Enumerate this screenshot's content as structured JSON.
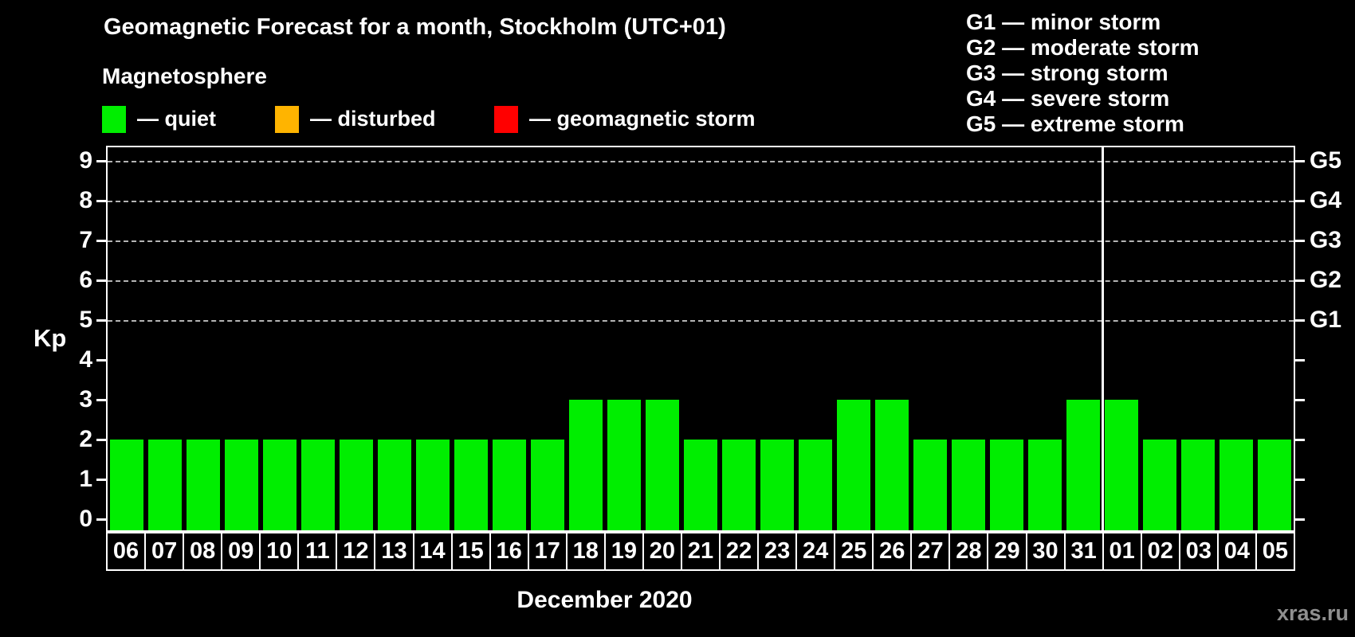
{
  "title": "Geomagnetic Forecast for a month, Stockholm (UTC+01)",
  "magnetosphere": {
    "heading": "Magnetosphere",
    "legend": [
      {
        "name": "quiet",
        "label": "— quiet",
        "color": "#00ee00"
      },
      {
        "name": "disturbed",
        "label": "— disturbed",
        "color": "#ffb400"
      },
      {
        "name": "geomagnetic-storm",
        "label": "— geomagnetic storm",
        "color": "#ff0000"
      }
    ]
  },
  "g_scale_legend": [
    "G1 — minor storm",
    "G2 — moderate storm",
    "G3 — strong storm",
    "G4 — severe storm",
    "G5 — extreme storm"
  ],
  "y_axis": {
    "label": "Kp",
    "ticks": [
      0,
      1,
      2,
      3,
      4,
      5,
      6,
      7,
      8,
      9
    ]
  },
  "right_axis": {
    "labels": [
      {
        "level": 5,
        "text": "G1"
      },
      {
        "level": 6,
        "text": "G2"
      },
      {
        "level": 7,
        "text": "G3"
      },
      {
        "level": 8,
        "text": "G4"
      },
      {
        "level": 9,
        "text": "G5"
      }
    ]
  },
  "x_axis_label": "December 2020",
  "watermark": "xras.ru",
  "colors": {
    "background": "#000000",
    "axis": "#ffffff",
    "gridline": "#b4b4b4",
    "quiet": "#00ee00",
    "disturbed": "#ffb400",
    "storm": "#ff0000",
    "watermark": "#8f8f8f"
  },
  "chart_data": {
    "type": "bar",
    "title": "Geomagnetic Forecast for a month, Stockholm (UTC+01)",
    "xlabel": "December 2020",
    "ylabel": "Kp",
    "ylim": [
      0,
      9
    ],
    "legend_position": "top",
    "grid": "dashed horizontal lines at Kp 5–9 (G1–G5 levels)",
    "bar_color": "#00ee00",
    "month_separator_after_index": 25,
    "categories": [
      "06",
      "07",
      "08",
      "09",
      "10",
      "11",
      "12",
      "13",
      "14",
      "15",
      "16",
      "17",
      "18",
      "19",
      "20",
      "21",
      "22",
      "23",
      "24",
      "25",
      "26",
      "27",
      "28",
      "29",
      "30",
      "31",
      "01",
      "02",
      "03",
      "04",
      "05"
    ],
    "values": [
      2,
      2,
      2,
      2,
      2,
      2,
      2,
      2,
      2,
      2,
      2,
      2,
      3,
      3,
      3,
      2,
      2,
      2,
      2,
      3,
      3,
      2,
      2,
      2,
      2,
      3,
      3,
      2,
      2,
      2,
      2
    ],
    "gridline_levels": [
      5,
      6,
      7,
      8,
      9
    ]
  }
}
